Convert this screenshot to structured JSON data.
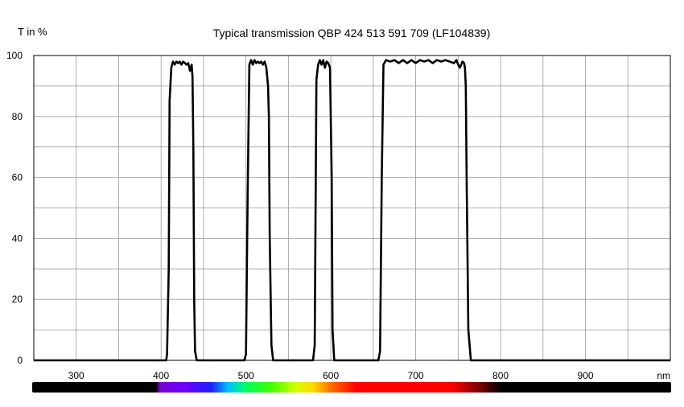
{
  "chart_data": {
    "type": "line",
    "title": "Typical transmission QBP 424 513 591 709  (LF104839)",
    "ylabel": "T in %",
    "xlabel": "nm",
    "xlim": [
      250,
      1000
    ],
    "ylim": [
      0,
      100
    ],
    "x_ticks": [
      300,
      400,
      500,
      600,
      700,
      800,
      900
    ],
    "y_ticks": [
      0,
      20,
      40,
      60,
      80,
      100
    ],
    "grid": true,
    "series": [
      {
        "x": [
          250,
          406,
          407,
          409,
          410,
          412,
          414,
          416,
          418,
          420,
          422,
          424,
          426,
          428,
          430,
          432,
          434,
          436,
          437,
          438,
          439,
          440,
          442,
          444,
          498,
          500,
          502,
          504,
          506,
          508,
          510,
          512,
          514,
          516,
          518,
          520,
          522,
          524,
          526,
          527,
          528,
          530,
          532,
          579,
          581,
          583,
          585,
          587,
          589,
          591,
          593,
          595,
          597,
          599,
          601,
          602,
          604,
          606,
          656,
          658,
          660,
          662,
          665,
          670,
          675,
          680,
          685,
          690,
          695,
          700,
          705,
          710,
          715,
          720,
          725,
          730,
          735,
          740,
          745,
          748,
          750,
          752,
          755,
          757,
          758,
          759,
          760,
          762,
          765,
          1000
        ],
        "y": [
          0,
          0,
          2,
          30,
          85,
          96,
          98,
          97,
          98,
          97.5,
          98,
          97,
          98,
          97.5,
          97,
          97.5,
          95,
          97,
          93,
          70,
          20,
          3,
          0,
          0,
          0,
          2,
          55,
          97,
          98.5,
          97,
          98.5,
          97.5,
          98,
          97.5,
          98,
          97,
          98,
          96,
          90,
          80,
          40,
          5,
          0,
          0,
          5,
          92,
          97,
          98.5,
          97,
          98.5,
          96,
          98,
          97.5,
          96,
          60,
          10,
          0,
          0,
          0,
          3,
          60,
          97,
          98.5,
          98,
          98.5,
          97.5,
          98.5,
          97.5,
          98.5,
          97.5,
          98.5,
          98,
          98.5,
          97.5,
          98.5,
          98,
          98.5,
          98,
          97.5,
          98.5,
          97,
          96,
          98,
          97.5,
          96,
          90,
          60,
          10,
          0,
          0
        ]
      }
    ],
    "spectrum_bar_stops": [
      {
        "nm": 250,
        "color": "#000000"
      },
      {
        "nm": 395,
        "color": "#000000"
      },
      {
        "nm": 400,
        "color": "#7a00d6"
      },
      {
        "nm": 430,
        "color": "#6a00ff"
      },
      {
        "nm": 460,
        "color": "#1a20ff"
      },
      {
        "nm": 480,
        "color": "#00c0ff"
      },
      {
        "nm": 500,
        "color": "#00ff60"
      },
      {
        "nm": 530,
        "color": "#40ff00"
      },
      {
        "nm": 560,
        "color": "#d8ff00"
      },
      {
        "nm": 580,
        "color": "#ffd800"
      },
      {
        "nm": 600,
        "color": "#ff7000"
      },
      {
        "nm": 630,
        "color": "#ff0000"
      },
      {
        "nm": 740,
        "color": "#ff0000"
      },
      {
        "nm": 770,
        "color": "#900000"
      },
      {
        "nm": 800,
        "color": "#000000"
      },
      {
        "nm": 1000,
        "color": "#000000"
      }
    ],
    "colors": {
      "line": "#000000",
      "grid": "#9a9a9a",
      "axis": "#000000"
    }
  }
}
